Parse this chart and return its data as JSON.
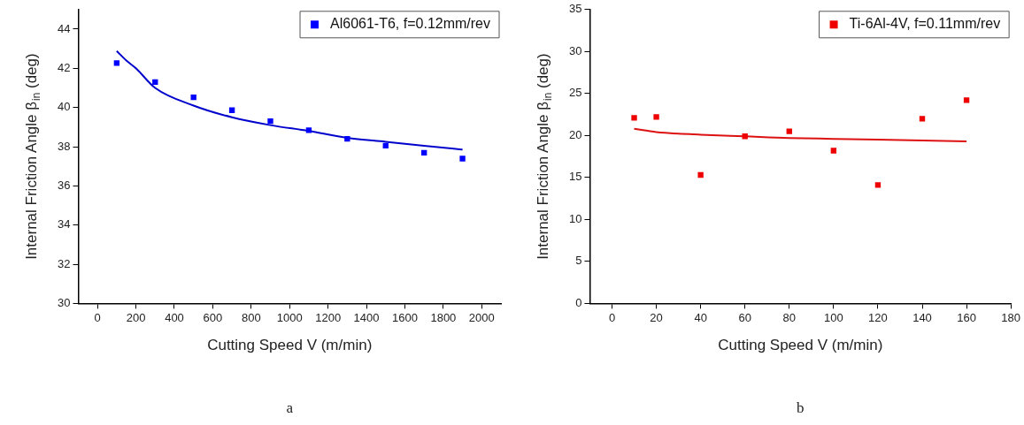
{
  "chart_data": [
    {
      "type": "scatter",
      "xlabel": "Cutting Speed V (m/min)",
      "ylabel": "Internal Friction Angle β$_{in}$ (deg)",
      "xlim": [
        -100,
        2100
      ],
      "xticks": [
        0,
        200,
        400,
        600,
        800,
        1000,
        1200,
        1400,
        1600,
        1800,
        2000
      ],
      "ylim": [
        30,
        45
      ],
      "yticks": [
        30,
        32,
        34,
        36,
        38,
        40,
        42,
        44
      ],
      "grid": false,
      "legend": "top right",
      "marker": "square",
      "annotations": [
        "a"
      ],
      "series": [
        {
          "name": "Al6061-T6, f=0.12mm/rev",
          "color": "#0000ff",
          "x": [
            100,
            300,
            500,
            700,
            900,
            1100,
            1300,
            1500,
            1700,
            1900
          ],
          "values": [
            42.27,
            41.3,
            40.52,
            39.86,
            39.3,
            38.84,
            38.4,
            38.05,
            37.69,
            37.39
          ]
        },
        {
          "type": "line",
          "marker": "none",
          "color": "#0000cc",
          "x": [
            100,
            150,
            200,
            300,
            500,
            700,
            900,
            1100,
            1300,
            1500,
            1700,
            1900
          ],
          "values": [
            42.88,
            42.4,
            42.0,
            41.0,
            40.1,
            39.5,
            39.1,
            38.8,
            38.45,
            38.25,
            38.05,
            37.85
          ]
        }
      ]
    },
    {
      "type": "scatter",
      "xlabel": "Cutting Speed V (m/min)",
      "ylabel": "Internal Friction Angle β$_{in}$ (deg)",
      "xlim": [
        -10,
        180
      ],
      "xticks": [
        0,
        20,
        40,
        60,
        80,
        100,
        120,
        140,
        160,
        180
      ],
      "ylim": [
        0,
        35
      ],
      "yticks": [
        0,
        5,
        10,
        15,
        20,
        25,
        30,
        35
      ],
      "grid": false,
      "legend": "top right",
      "marker": "square",
      "annotations": [
        "b"
      ],
      "series": [
        {
          "name": "Ti-6Al-4V, f=0.11mm/rev",
          "color": "#ee0000",
          "x": [
            10,
            20,
            40,
            60,
            80,
            100,
            120,
            140,
            160
          ],
          "values": [
            22.1,
            22.2,
            15.3,
            19.9,
            20.5,
            18.2,
            14.1,
            22.0,
            24.2
          ]
        },
        {
          "type": "line",
          "marker": "none",
          "color": "#dd1111",
          "x": [
            10,
            20,
            40,
            60,
            80,
            100,
            120,
            140,
            160
          ],
          "values": [
            20.8,
            20.4,
            20.1,
            19.9,
            19.7,
            19.6,
            19.5,
            19.4,
            19.3
          ]
        }
      ]
    }
  ]
}
